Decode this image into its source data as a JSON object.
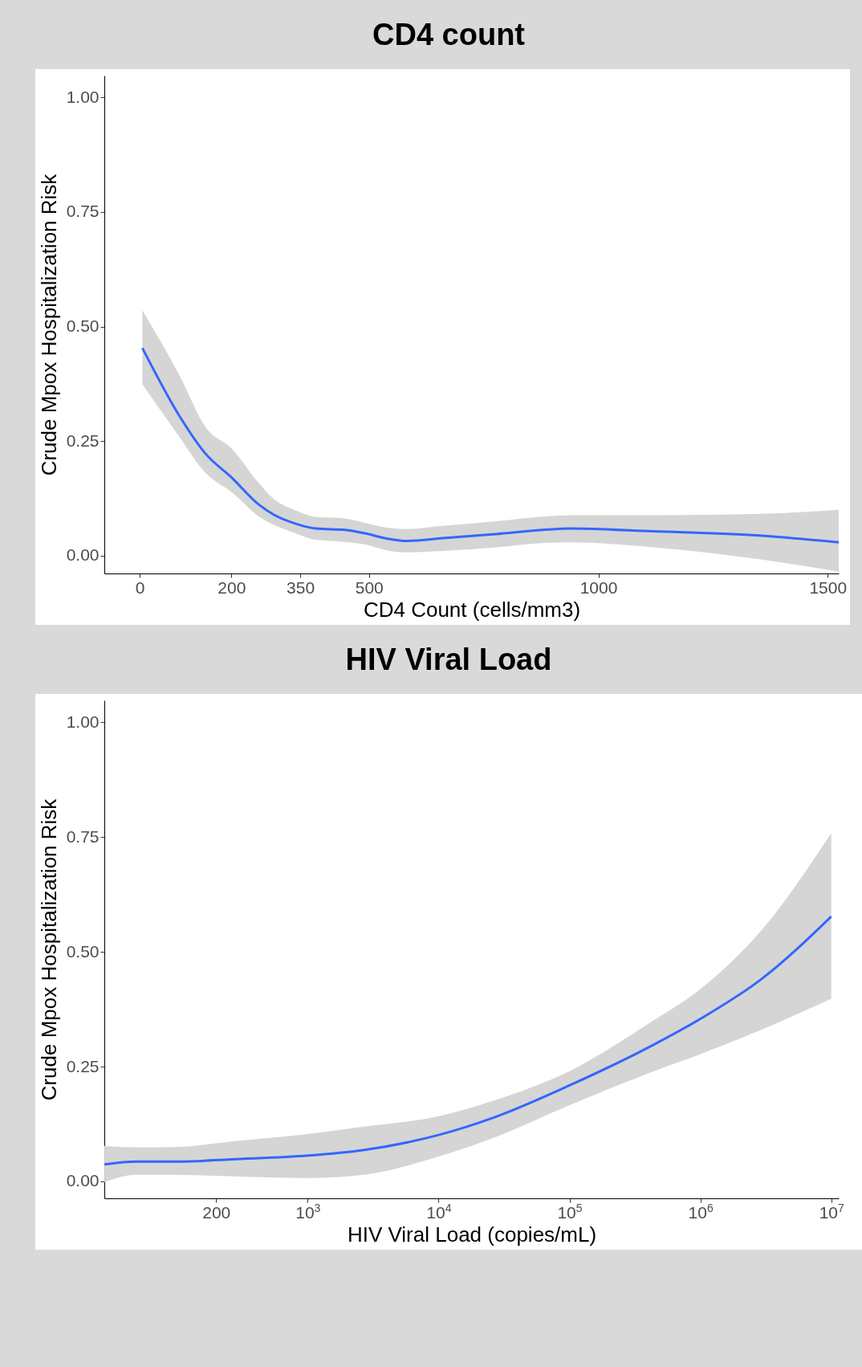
{
  "chart_data": [
    {
      "type": "line",
      "title": "CD4 count",
      "xlabel": "CD4 Count (cells/mm3)",
      "ylabel": "Crude Mpox Hospitalization Risk",
      "xlim": [
        -77,
        1524
      ],
      "ylim": [
        -0.039,
        1.048
      ],
      "xticks": [
        0,
        200,
        350,
        500,
        1000,
        1500
      ],
      "yticks": [
        {
          "value": 0,
          "label": "0.00"
        },
        {
          "value": 0.25,
          "label": "0.25"
        },
        {
          "value": 0.5,
          "label": "0.50"
        },
        {
          "value": 0.75,
          "label": "0.75"
        },
        {
          "value": 1,
          "label": "1.00"
        }
      ],
      "grid": false,
      "series": [
        {
          "color": "#3366ff",
          "x": [
            6,
            86,
            144,
            201,
            259,
            293,
            339,
            385,
            448,
            489,
            546,
            580,
            661,
            776,
            891,
            937,
            1121,
            1351,
            1524
          ],
          "values": [
            0.453,
            0.306,
            0.222,
            0.17,
            0.112,
            0.089,
            0.07,
            0.059,
            0.056,
            0.049,
            0.036,
            0.032,
            0.038,
            0.047,
            0.057,
            0.059,
            0.053,
            0.044,
            0.029
          ],
          "lower": [
            0.374,
            0.26,
            0.18,
            0.138,
            0.086,
            0.067,
            0.049,
            0.034,
            0.03,
            0.025,
            0.01,
            0.007,
            0.01,
            0.018,
            0.028,
            0.029,
            0.018,
            -0.008,
            -0.035
          ],
          "upper": [
            0.535,
            0.395,
            0.28,
            0.233,
            0.159,
            0.123,
            0.099,
            0.084,
            0.081,
            0.072,
            0.06,
            0.058,
            0.065,
            0.075,
            0.086,
            0.088,
            0.088,
            0.091,
            0.1
          ]
        }
      ]
    },
    {
      "type": "line",
      "title": "HIV Viral Load",
      "xlabel": "HIV Viral Load (copies/mL)",
      "ylabel": "Crude Mpox Hospitalization Risk",
      "log": "x",
      "xlim": [
        28,
        11400000
      ],
      "ylim": [
        -0.037,
        1.048
      ],
      "xticks": [
        200,
        {
          "value": 1000,
          "label": "10$^{3}$"
        },
        {
          "value": 10000,
          "label": "10$^{4}$"
        },
        {
          "value": 100000,
          "label": "10$^{5}$"
        },
        {
          "value": 1000000,
          "label": "10$^{6}$"
        },
        {
          "value": 10000000,
          "label": "10$^{7}$"
        }
      ],
      "yticks": [
        {
          "value": 0,
          "label": "0.00"
        },
        {
          "value": 0.25,
          "label": "0.25"
        },
        {
          "value": 0.5,
          "label": "0.50"
        },
        {
          "value": 0.75,
          "label": "0.75"
        },
        {
          "value": 1,
          "label": "1.00"
        }
      ],
      "grid": false,
      "series": [
        {
          "color": "#3366ff",
          "x": [
            28,
            49,
            103,
            260,
            1000,
            2650,
            10000,
            27000,
            100000,
            441000,
            1000000,
            2910000,
            10000000
          ],
          "values": [
            0.037,
            0.043,
            0.043,
            0.048,
            0.056,
            0.068,
            0.101,
            0.14,
            0.209,
            0.298,
            0.354,
            0.44,
            0.577
          ],
          "lower": [
            -0.002,
            0.014,
            0.014,
            0.011,
            0.007,
            0.014,
            0.054,
            0.096,
            0.166,
            0.24,
            0.277,
            0.33,
            0.398
          ],
          "upper": [
            0.077,
            0.074,
            0.075,
            0.087,
            0.103,
            0.119,
            0.142,
            0.177,
            0.24,
            0.351,
            0.419,
            0.546,
            0.759
          ]
        }
      ]
    }
  ]
}
